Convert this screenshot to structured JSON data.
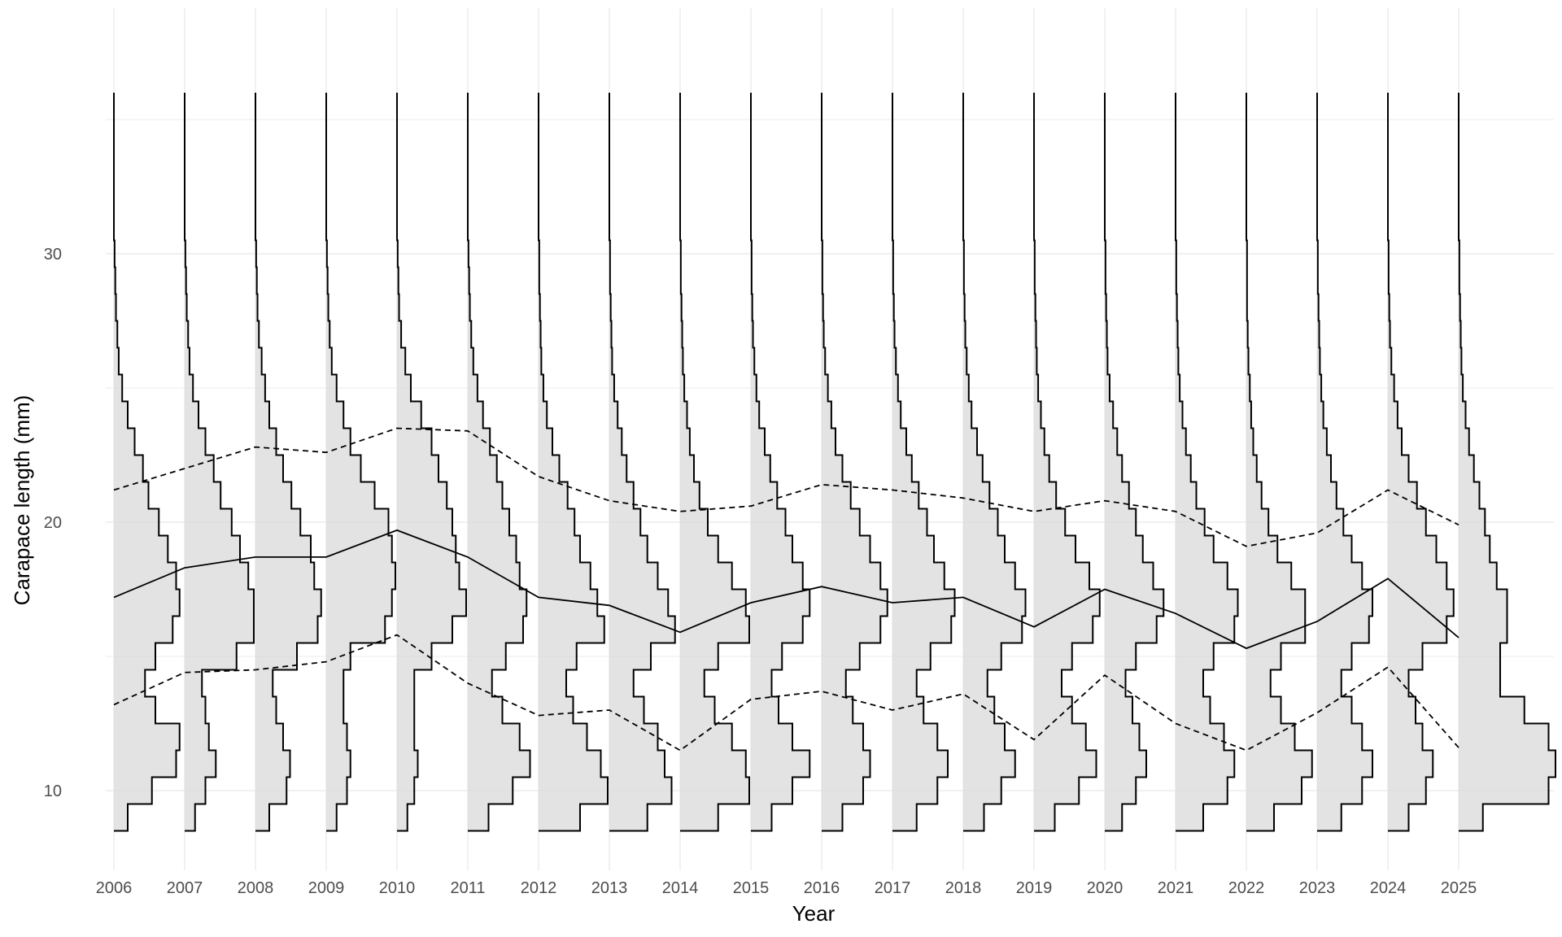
{
  "chart_data": {
    "type": "ridgeline-histogram",
    "xlabel": "Year",
    "ylabel": "Carapace length (mm)",
    "x_ticks": [
      "2006",
      "2007",
      "2008",
      "2009",
      "2010",
      "2011",
      "2012",
      "2013",
      "2014",
      "2015",
      "2016",
      "2017",
      "2018",
      "2019",
      "2020",
      "2021",
      "2022",
      "2023",
      "2024",
      "2025"
    ],
    "y_ticks": [
      10,
      20,
      30
    ],
    "ylim": [
      7,
      37
    ],
    "grid": true,
    "colors": {
      "fill": "#d9d9d9",
      "outline": "#000000",
      "grid": "#ebebeb"
    },
    "bins": [
      9,
      10,
      11,
      12,
      13,
      14,
      15,
      16,
      17,
      18,
      19,
      20,
      21,
      22,
      23,
      24,
      25,
      26,
      27,
      28,
      29,
      30
    ],
    "series": [
      {
        "year": "2006",
        "mean": 17.2,
        "lower": 13.2,
        "upper": 21.2,
        "density": [
          0.2,
          0.55,
          0.9,
          0.95,
          0.6,
          0.45,
          0.6,
          0.85,
          0.95,
          0.9,
          0.78,
          0.65,
          0.5,
          0.42,
          0.3,
          0.2,
          0.12,
          0.07,
          0.05,
          0.03,
          0.02,
          0.01
        ]
      },
      {
        "year": "2007",
        "mean": 18.3,
        "lower": 14.4,
        "upper": 22.0,
        "density": [
          0.15,
          0.3,
          0.45,
          0.35,
          0.3,
          0.25,
          0.75,
          1.0,
          1.0,
          0.92,
          0.8,
          0.68,
          0.52,
          0.42,
          0.3,
          0.2,
          0.12,
          0.07,
          0.05,
          0.03,
          0.02,
          0.01
        ]
      },
      {
        "year": "2008",
        "mean": 18.7,
        "lower": 14.5,
        "upper": 22.8,
        "density": [
          0.2,
          0.45,
          0.5,
          0.4,
          0.3,
          0.25,
          0.6,
          0.9,
          0.95,
          0.85,
          0.8,
          0.65,
          0.52,
          0.4,
          0.3,
          0.2,
          0.14,
          0.09,
          0.05,
          0.03,
          0.02,
          0.01
        ]
      },
      {
        "year": "2009",
        "mean": 18.7,
        "lower": 14.8,
        "upper": 22.6,
        "density": [
          0.15,
          0.3,
          0.35,
          0.3,
          0.25,
          0.25,
          0.35,
          0.85,
          0.95,
          1.0,
          0.95,
          0.9,
          0.7,
          0.5,
          0.35,
          0.25,
          0.15,
          0.08,
          0.05,
          0.03,
          0.02,
          0.01
        ]
      },
      {
        "year": "2010",
        "mean": 19.7,
        "lower": 15.8,
        "upper": 23.5,
        "density": [
          0.15,
          0.25,
          0.3,
          0.25,
          0.25,
          0.25,
          0.5,
          0.8,
          1.0,
          0.9,
          0.85,
          0.8,
          0.72,
          0.6,
          0.5,
          0.35,
          0.2,
          0.12,
          0.06,
          0.03,
          0.02,
          0.01
        ]
      },
      {
        "year": "2011",
        "mean": 18.7,
        "lower": 14.0,
        "upper": 23.4,
        "density": [
          0.3,
          0.65,
          0.9,
          0.75,
          0.5,
          0.35,
          0.55,
          0.8,
          0.85,
          0.75,
          0.7,
          0.6,
          0.5,
          0.42,
          0.32,
          0.22,
          0.14,
          0.08,
          0.05,
          0.03,
          0.02,
          0.01
        ]
      },
      {
        "year": "2012",
        "mean": 17.2,
        "lower": 12.8,
        "upper": 21.7,
        "density": [
          0.6,
          1.0,
          0.9,
          0.7,
          0.5,
          0.4,
          0.55,
          0.95,
          0.85,
          0.75,
          0.6,
          0.52,
          0.42,
          0.3,
          0.2,
          0.12,
          0.07,
          0.04,
          0.03,
          0.02,
          0.01,
          0.01
        ]
      },
      {
        "year": "2013",
        "mean": 16.9,
        "lower": 13.0,
        "upper": 20.8,
        "density": [
          0.55,
          0.9,
          0.8,
          0.7,
          0.5,
          0.35,
          0.6,
          0.95,
          0.85,
          0.7,
          0.55,
          0.45,
          0.35,
          0.25,
          0.18,
          0.12,
          0.07,
          0.04,
          0.03,
          0.02,
          0.01,
          0.01
        ]
      },
      {
        "year": "2014",
        "mean": 15.9,
        "lower": 11.5,
        "upper": 20.4,
        "density": [
          0.55,
          1.0,
          0.95,
          0.75,
          0.5,
          0.35,
          0.55,
          1.0,
          0.95,
          0.75,
          0.55,
          0.4,
          0.28,
          0.2,
          0.14,
          0.1,
          0.06,
          0.04,
          0.03,
          0.02,
          0.01,
          0.01
        ]
      },
      {
        "year": "2015",
        "mean": 17.0,
        "lower": 13.4,
        "upper": 20.6,
        "density": [
          0.3,
          0.6,
          0.85,
          0.6,
          0.4,
          0.3,
          0.45,
          0.75,
          0.85,
          0.75,
          0.6,
          0.5,
          0.38,
          0.28,
          0.2,
          0.12,
          0.08,
          0.05,
          0.03,
          0.02,
          0.01,
          0.01
        ]
      },
      {
        "year": "2016",
        "mean": 17.6,
        "lower": 13.7,
        "upper": 21.4,
        "density": [
          0.3,
          0.6,
          0.7,
          0.6,
          0.45,
          0.35,
          0.55,
          0.85,
          0.95,
          0.85,
          0.7,
          0.55,
          0.42,
          0.3,
          0.2,
          0.14,
          0.09,
          0.05,
          0.03,
          0.02,
          0.01,
          0.01
        ]
      },
      {
        "year": "2017",
        "mean": 17.0,
        "lower": 13.0,
        "upper": 21.2,
        "density": [
          0.35,
          0.65,
          0.8,
          0.65,
          0.45,
          0.35,
          0.55,
          0.85,
          0.9,
          0.75,
          0.6,
          0.5,
          0.38,
          0.28,
          0.2,
          0.12,
          0.08,
          0.05,
          0.03,
          0.02,
          0.01,
          0.01
        ]
      },
      {
        "year": "2018",
        "mean": 17.2,
        "lower": 13.6,
        "upper": 20.9,
        "density": [
          0.3,
          0.55,
          0.75,
          0.6,
          0.45,
          0.35,
          0.55,
          0.85,
          0.9,
          0.75,
          0.6,
          0.5,
          0.38,
          0.28,
          0.2,
          0.12,
          0.08,
          0.05,
          0.03,
          0.02,
          0.01,
          0.01
        ]
      },
      {
        "year": "2019",
        "mean": 16.1,
        "lower": 11.9,
        "upper": 20.4,
        "density": [
          0.3,
          0.65,
          0.9,
          0.75,
          0.55,
          0.4,
          0.55,
          0.85,
          0.95,
          0.8,
          0.6,
          0.45,
          0.32,
          0.22,
          0.15,
          0.1,
          0.06,
          0.04,
          0.03,
          0.02,
          0.01,
          0.01
        ]
      },
      {
        "year": "2020",
        "mean": 17.5,
        "lower": 14.3,
        "upper": 20.8,
        "density": [
          0.25,
          0.45,
          0.6,
          0.5,
          0.4,
          0.3,
          0.45,
          0.75,
          0.85,
          0.7,
          0.55,
          0.45,
          0.35,
          0.25,
          0.18,
          0.12,
          0.07,
          0.04,
          0.03,
          0.02,
          0.01,
          0.01
        ]
      },
      {
        "year": "2021",
        "mean": 16.6,
        "lower": 12.5,
        "upper": 20.4,
        "density": [
          0.4,
          0.75,
          0.85,
          0.7,
          0.5,
          0.4,
          0.55,
          0.85,
          0.9,
          0.75,
          0.55,
          0.42,
          0.3,
          0.22,
          0.15,
          0.1,
          0.06,
          0.04,
          0.03,
          0.02,
          0.01,
          0.01
        ]
      },
      {
        "year": "2022",
        "mean": 15.3,
        "lower": 11.5,
        "upper": 19.1,
        "density": [
          0.4,
          0.8,
          0.95,
          0.7,
          0.5,
          0.35,
          0.5,
          0.85,
          0.85,
          0.65,
          0.45,
          0.32,
          0.22,
          0.15,
          0.1,
          0.07,
          0.05,
          0.03,
          0.02,
          0.01,
          0.01,
          0.01
        ]
      },
      {
        "year": "2023",
        "mean": 16.3,
        "lower": 12.9,
        "upper": 19.6,
        "density": [
          0.35,
          0.65,
          0.8,
          0.65,
          0.5,
          0.35,
          0.5,
          0.75,
          0.8,
          0.65,
          0.5,
          0.38,
          0.28,
          0.2,
          0.14,
          0.09,
          0.06,
          0.04,
          0.03,
          0.02,
          0.01,
          0.01
        ]
      },
      {
        "year": "2024",
        "mean": 17.9,
        "lower": 14.6,
        "upper": 21.2,
        "density": [
          0.3,
          0.55,
          0.65,
          0.5,
          0.4,
          0.3,
          0.5,
          0.85,
          0.95,
          0.85,
          0.7,
          0.55,
          0.42,
          0.3,
          0.2,
          0.14,
          0.09,
          0.05,
          0.03,
          0.02,
          0.01,
          0.01
        ]
      },
      {
        "year": "2025",
        "mean": 15.7,
        "lower": 11.6,
        "upper": 19.9,
        "density": [
          0.35,
          1.3,
          1.4,
          1.3,
          0.95,
          0.6,
          0.6,
          0.7,
          0.7,
          0.55,
          0.45,
          0.38,
          0.3,
          0.22,
          0.15,
          0.1,
          0.06,
          0.04,
          0.03,
          0.02,
          0.01,
          0.01
        ]
      }
    ]
  }
}
